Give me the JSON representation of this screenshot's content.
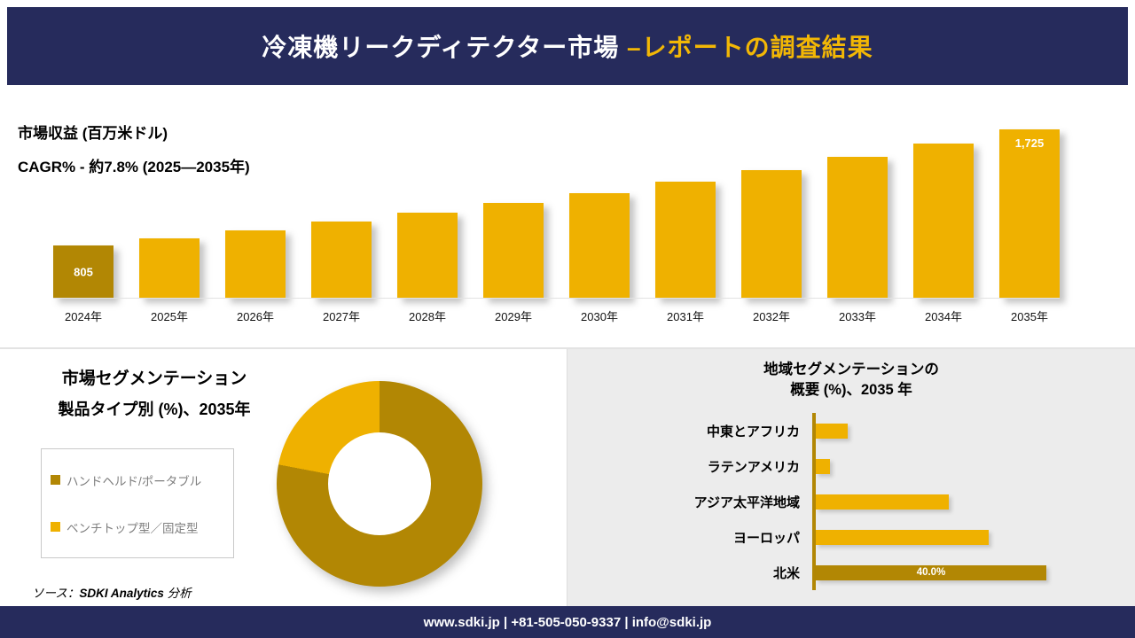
{
  "header": {
    "title_main": "冷凍機リークディテクター市場",
    "title_accent": " –レポートの調査結果"
  },
  "revenue_section": {
    "metric_label": "市場収益 (百万米ドル)",
    "cagr_label": "CAGR% - 約7.8% (2025―2035年)"
  },
  "segmentation_left": {
    "title_line1": "市場セグメンテーション",
    "title_line2": "製品タイプ別 (%)、2035年",
    "source_prefix": "ソース：",
    "source_brand": "SDKI Analytics",
    "source_suffix": " 分析"
  },
  "segmentation_right": {
    "title_line1": "地域セグメンテーションの",
    "title_line2": "概要 (%)、2035 年"
  },
  "footer": {
    "contact": "www.sdki.jp | +81-505-050-9337 | info@sdki.jp"
  },
  "colors": {
    "navy": "#262B5C",
    "gold": "#EFB100",
    "dark_gold": "#B28704",
    "accent_gold": "#F2B705",
    "panel_gray": "#ECECEC"
  },
  "chart_data": [
    {
      "type": "bar",
      "title": "市場収益 (百万米ドル)",
      "subtitle": "CAGR% - 約7.8% (2025―2035年)",
      "categories": [
        "2024年",
        "2025年",
        "2026年",
        "2027年",
        "2028年",
        "2029年",
        "2030年",
        "2031年",
        "2032年",
        "2033年",
        "2034年",
        "2035年"
      ],
      "values": [
        805,
        863,
        925,
        992,
        1063,
        1140,
        1222,
        1310,
        1405,
        1506,
        1614,
        1725
      ],
      "data_labels": {
        "first": "805",
        "last": "1,725"
      },
      "ylim": [
        0,
        1800
      ],
      "grid": false,
      "legend": "none"
    },
    {
      "type": "pie",
      "subtype": "donut",
      "title": "市場セグメンテーション 製品タイプ別 (%)、2035年",
      "slices": [
        {
          "label": "ハンドヘルド/ポータブル",
          "value": 78
        },
        {
          "label": "ベンチトップ型／固定型",
          "value": 22
        }
      ],
      "legend_position": "left"
    },
    {
      "type": "bar",
      "orientation": "horizontal",
      "title": "地域セグメンテーションの概要 (%)、2035 年",
      "categories": [
        "中東とアフリカ",
        "ラテンアメリカ",
        "アジア太平洋地域",
        "ヨーロッパ",
        "北米"
      ],
      "values": [
        5.5,
        2.5,
        23,
        30,
        40
      ],
      "data_labels": {
        "北米": "40.0%"
      },
      "xlim": [
        0,
        44
      ]
    }
  ]
}
